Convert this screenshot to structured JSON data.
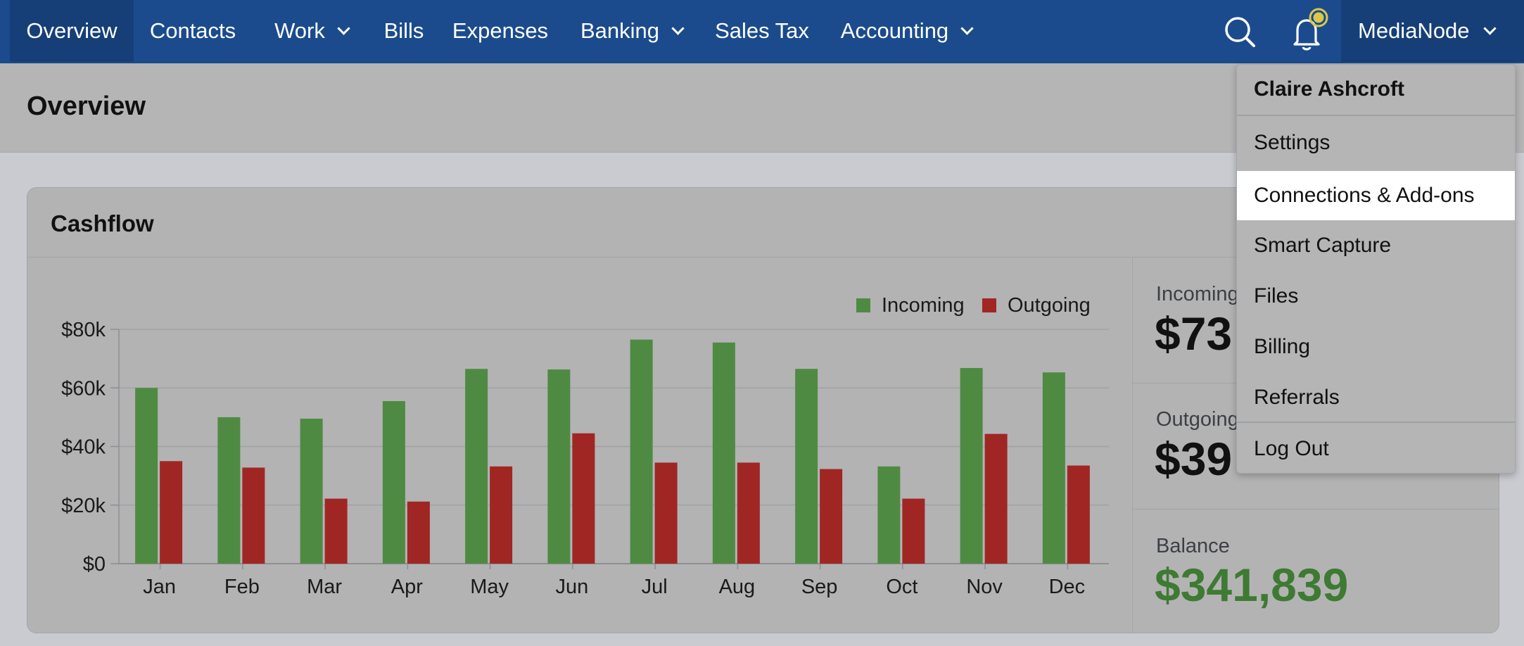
{
  "nav": {
    "items": [
      {
        "label": "Overview",
        "active": true
      },
      {
        "label": "Contacts"
      },
      {
        "label": "Work"
      },
      {
        "label": "Bills"
      },
      {
        "label": "Expenses"
      },
      {
        "label": "Banking"
      },
      {
        "label": "Sales Tax"
      },
      {
        "label": "Accounting"
      }
    ],
    "search_icon": "search-icon",
    "notification_icon": "bell-icon",
    "account_name": "MediaNode"
  },
  "page": {
    "title": "Overview"
  },
  "cashflow": {
    "title": "Cashflow",
    "stats": [
      {
        "label": "Incoming",
        "value": "$73"
      },
      {
        "label": "Outgoing",
        "value": "$39"
      },
      {
        "label": "Balance",
        "value": "$341,839"
      }
    ]
  },
  "dropdown": {
    "user_name": "Claire Ashcroft",
    "items": [
      "Settings",
      "Connections & Add-ons",
      "Smart Capture",
      "Files",
      "Billing",
      "Referrals"
    ],
    "logout": "Log Out",
    "highlighted": "Connections & Add-ons"
  },
  "colors": {
    "nav_bg": "#1b4b8c",
    "incoming": "#4f8a43",
    "outgoing": "#a02624",
    "balance": "#3e7a33",
    "highlight": "#ffffff"
  },
  "chart_data": {
    "type": "bar",
    "categories": [
      "Jan",
      "Feb",
      "Mar",
      "Apr",
      "May",
      "Jun",
      "Jul",
      "Aug",
      "Sep",
      "Oct",
      "Nov",
      "Dec"
    ],
    "series": [
      {
        "name": "Incoming",
        "values": [
          60000,
          50000,
          49500,
          55500,
          66500,
          66300,
          76500,
          75500,
          66500,
          33200,
          66800,
          65300
        ]
      },
      {
        "name": "Outgoing",
        "values": [
          35000,
          32800,
          22200,
          21200,
          33200,
          44500,
          34500,
          34500,
          32300,
          22200,
          44300,
          33500
        ]
      }
    ],
    "yticks": [
      "$0",
      "$20k",
      "$40k",
      "$60k",
      "$80k"
    ],
    "ylim": [
      0,
      80000
    ],
    "grid": true,
    "legend": "top-right",
    "title": "",
    "xlabel": "",
    "ylabel": ""
  }
}
